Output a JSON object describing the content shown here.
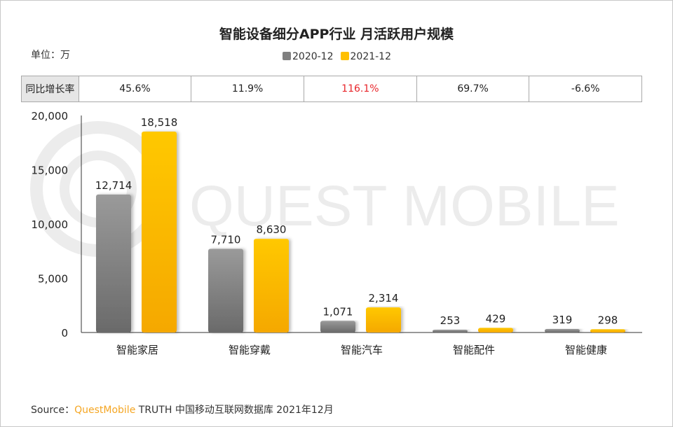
{
  "title": "智能设备细分APP行业 月活跃用户规模",
  "unit_label": "单位：万",
  "watermark": "QUEST MOBILE",
  "yoy": {
    "label": "同比增长率",
    "values": [
      "45.6%",
      "11.9%",
      "116.1%",
      "69.7%",
      "-6.6%"
    ],
    "highlight_color": "#e8262b",
    "highlight_index": 2
  },
  "chart_data": {
    "type": "bar",
    "categories": [
      "智能家居",
      "智能穿戴",
      "智能汽车",
      "智能配件",
      "智能健康"
    ],
    "series": [
      {
        "name": "2020-12",
        "values": [
          12714,
          7710,
          1071,
          253,
          319
        ],
        "labels": [
          "12,714",
          "7,710",
          "1,071",
          "253",
          "319"
        ],
        "color": "#8a8a8a"
      },
      {
        "name": "2021-12",
        "values": [
          18518,
          8630,
          2314,
          429,
          298
        ],
        "labels": [
          "18,518",
          "8,630",
          "2,314",
          "429",
          "298"
        ],
        "color": "#ffc000"
      }
    ],
    "ylim": [
      0,
      20000
    ],
    "yticks": [
      "0",
      "5,000",
      "10,000",
      "15,000",
      "20,000"
    ],
    "ytick_values": [
      0,
      5000,
      10000,
      15000,
      20000
    ],
    "grid": false,
    "legend": "top-center"
  },
  "source": {
    "prefix": "Source：",
    "brand": "QuestMobile",
    "text": "TRUTH 中国移动互联网数据库 2021年12月"
  }
}
